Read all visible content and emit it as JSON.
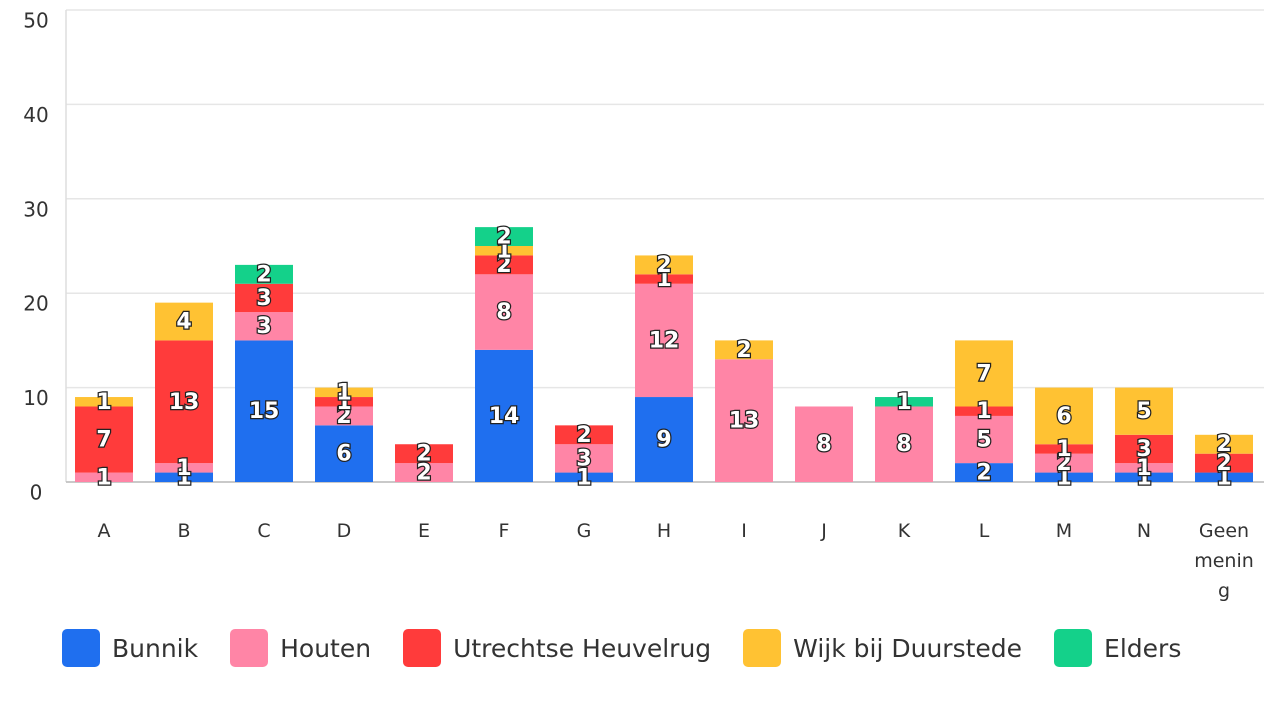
{
  "chart_data": {
    "type": "stacked_bar",
    "categories": [
      "A",
      "B",
      "C",
      "D",
      "E",
      "F",
      "G",
      "H",
      "I",
      "J",
      "K",
      "L",
      "M",
      "N",
      "Geen mening"
    ],
    "series": [
      {
        "name": "Bunnik",
        "color": "#1f6fef",
        "values": [
          0,
          1,
          15,
          6,
          0,
          14,
          1,
          9,
          0,
          0,
          0,
          2,
          1,
          1,
          1
        ]
      },
      {
        "name": "Houten",
        "color": "#ff85a6",
        "values": [
          1,
          1,
          3,
          2,
          2,
          8,
          3,
          12,
          13,
          8,
          8,
          5,
          2,
          1,
          0
        ]
      },
      {
        "name": "Utrechtse Heuvelrug",
        "color": "#ff3b3b",
        "values": [
          7,
          13,
          3,
          1,
          2,
          2,
          2,
          1,
          0,
          0,
          0,
          1,
          1,
          3,
          2
        ]
      },
      {
        "name": "Wijk bij Duurstede",
        "color": "#ffc233",
        "values": [
          1,
          4,
          0,
          1,
          0,
          1,
          0,
          2,
          2,
          0,
          0,
          7,
          6,
          5,
          2
        ]
      },
      {
        "name": "Elders",
        "color": "#14d18a",
        "values": [
          0,
          0,
          2,
          0,
          0,
          2,
          0,
          0,
          0,
          0,
          1,
          0,
          0,
          0,
          0
        ]
      }
    ],
    "ylim": [
      0,
      50
    ],
    "yticks": [
      0,
      10,
      20,
      30,
      40,
      50
    ],
    "grid": true,
    "legend": "bottom"
  }
}
